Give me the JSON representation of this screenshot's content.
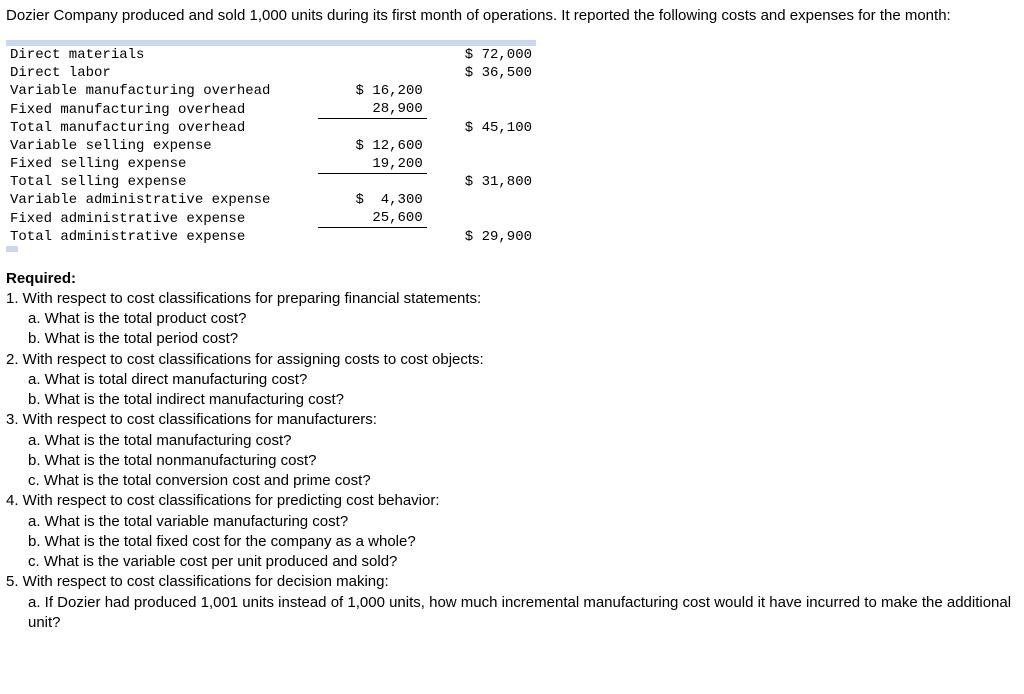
{
  "intro": "Dozier Company produced and sold 1,000 units during its first month of operations. It reported the following costs and expenses for the month:",
  "rows": [
    {
      "label": "Direct materials",
      "col1": "",
      "col2": "$ 72,000",
      "u1": false
    },
    {
      "label": "Direct labor",
      "col1": "",
      "col2": "$ 36,500",
      "u1": false
    },
    {
      "label": "Variable manufacturing overhead",
      "col1": "$ 16,200",
      "col2": "",
      "u1": false
    },
    {
      "label": "Fixed manufacturing overhead",
      "col1": "28,900",
      "col2": "",
      "u1": true
    },
    {
      "label": "Total manufacturing overhead",
      "col1": "",
      "col2": "$ 45,100",
      "u1": false
    },
    {
      "label": "Variable selling expense",
      "col1": "$ 12,600",
      "col2": "",
      "u1": false
    },
    {
      "label": "Fixed selling expense",
      "col1": "19,200",
      "col2": "",
      "u1": true
    },
    {
      "label": "Total selling expense",
      "col1": "",
      "col2": "$ 31,800",
      "u1": false
    },
    {
      "label": "Variable administrative expense",
      "col1": "$  4,300",
      "col2": "",
      "u1": false
    },
    {
      "label": "Fixed administrative expense",
      "col1": "25,600",
      "col2": "",
      "u1": true
    },
    {
      "label": "Total administrative expense",
      "col1": "",
      "col2": "$ 29,900",
      "u1": false
    }
  ],
  "required_label": "Required:",
  "questions": [
    "1. With respect to cost classifications for preparing financial statements:",
    "   a. What is the total product cost?",
    "   b. What is the total period cost?",
    "2. With respect to cost classifications for assigning costs to cost objects:",
    "   a. What is total direct manufacturing cost?",
    "   b. What is the total indirect manufacturing cost?",
    "3. With respect to cost classifications for manufacturers:",
    "   a. What is the total manufacturing cost?",
    "   b. What is the total nonmanufacturing cost?",
    "   c. What is the total conversion cost and prime cost?",
    "4. With respect to cost classifications for predicting cost behavior:",
    "   a. What is the total variable manufacturing cost?",
    "   b. What is the total fixed cost for the company as a whole?",
    "   c. What is the variable cost per unit produced and sold?",
    "5. With respect to cost classifications for decision making:",
    "   a. If Dozier had produced 1,001 units instead of 1,000 units, how much incremental manufacturing cost would it have incurred to make the additional unit?"
  ]
}
